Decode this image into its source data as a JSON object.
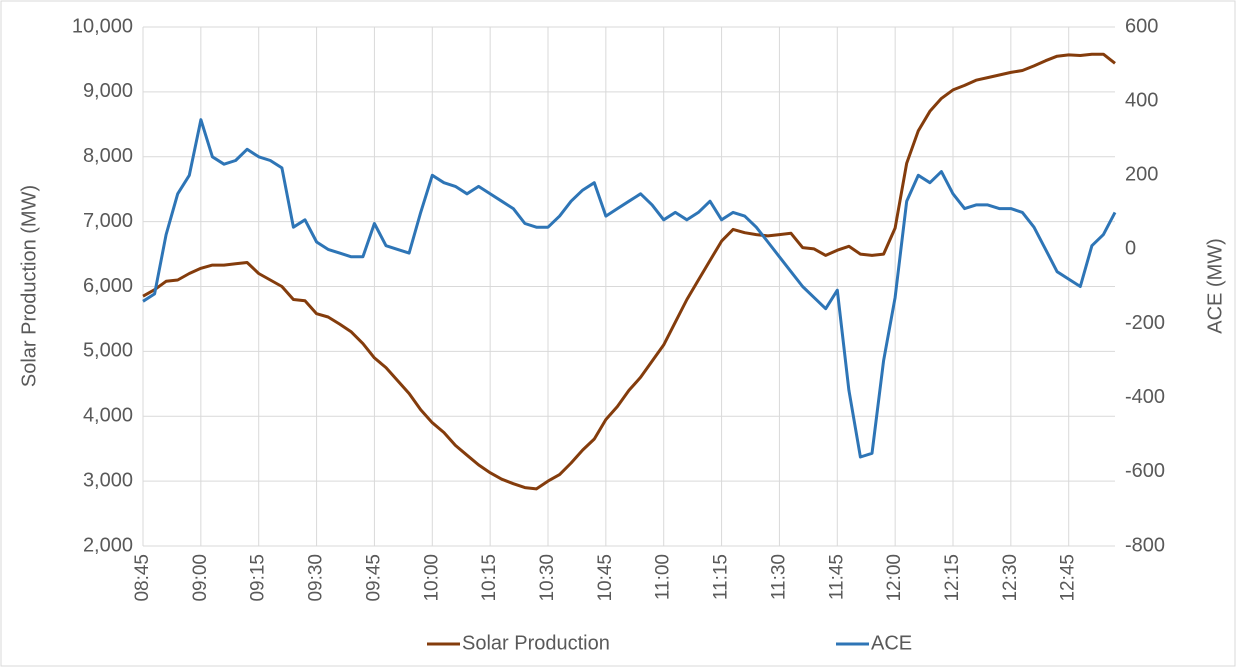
{
  "chart_data": {
    "type": "line",
    "categories": [
      "08:45",
      null,
      null,
      null,
      null,
      "09:00",
      null,
      null,
      null,
      null,
      "09:15",
      null,
      null,
      null,
      null,
      "09:30",
      null,
      null,
      null,
      null,
      "09:45",
      null,
      null,
      null,
      null,
      "10:00",
      null,
      null,
      null,
      null,
      "10:15",
      null,
      null,
      null,
      null,
      "10:30",
      null,
      null,
      null,
      null,
      "10:45",
      null,
      null,
      null,
      null,
      "11:00",
      null,
      null,
      null,
      null,
      "11:15",
      null,
      null,
      null,
      null,
      "11:30",
      null,
      null,
      null,
      null,
      "11:45",
      null,
      null,
      null,
      null,
      "12:00",
      null,
      null,
      null,
      null,
      "12:15",
      null,
      null,
      null,
      null,
      "12:30",
      null,
      null,
      null,
      null,
      "12:45",
      null,
      null,
      null,
      null
    ],
    "series": [
      {
        "name": "Solar Production",
        "color": "#843c0c",
        "values": [
          5850,
          5950,
          6080,
          6100,
          6200,
          6280,
          6330,
          6330,
          6350,
          6370,
          6200,
          6100,
          6000,
          5800,
          5780,
          5580,
          5530,
          5420,
          5300,
          5120,
          4900,
          4750,
          4550,
          4350,
          4100,
          3900,
          3750,
          3550,
          3400,
          3250,
          3130,
          3030,
          2960,
          2900,
          2880,
          3000,
          3100,
          3280,
          3480,
          3650,
          3950,
          4150,
          4400,
          4600,
          4850,
          5100,
          5450,
          5800,
          6100,
          6400,
          6700,
          6880,
          6830,
          6800,
          6780,
          6800,
          6820,
          6600,
          6580,
          6480,
          6560,
          6620,
          6500,
          6480,
          6500,
          6900,
          7900,
          8400,
          8700,
          8900,
          9030,
          9100,
          9180,
          9220,
          9260,
          9300,
          9330,
          9400,
          9480,
          9550,
          9570,
          9560,
          9580,
          9580,
          9440
        ]
      },
      {
        "name": "ACE",
        "color": "#2e75b6",
        "axis": "y2",
        "values": [
          -140,
          -120,
          40,
          150,
          200,
          350,
          250,
          230,
          240,
          270,
          250,
          240,
          220,
          60,
          80,
          20,
          0,
          -10,
          -20,
          -20,
          70,
          10,
          0,
          -10,
          100,
          200,
          180,
          170,
          150,
          170,
          150,
          130,
          110,
          70,
          60,
          60,
          90,
          130,
          160,
          180,
          90,
          110,
          130,
          150,
          120,
          80,
          100,
          80,
          100,
          130,
          80,
          100,
          90,
          60,
          20,
          -20,
          -60,
          -100,
          -130,
          -160,
          -110,
          -380,
          -560,
          -550,
          -300,
          -130,
          130,
          200,
          180,
          210,
          150,
          110,
          120,
          120,
          110,
          110,
          100,
          60,
          0,
          -60,
          -80,
          -100,
          10,
          40,
          100
        ]
      }
    ],
    "y_label": "Solar Production (MW)",
    "y2_label": "ACE (MW)",
    "ylim": [
      2000,
      10000
    ],
    "yticks": [
      {
        "value": 2000,
        "label": "2,000"
      },
      {
        "value": 3000,
        "label": "3,000"
      },
      {
        "value": 4000,
        "label": "4,000"
      },
      {
        "value": 5000,
        "label": "5,000"
      },
      {
        "value": 6000,
        "label": "6,000"
      },
      {
        "value": 7000,
        "label": "7,000"
      },
      {
        "value": 8000,
        "label": "8,000"
      },
      {
        "value": 9000,
        "label": "9,000"
      },
      {
        "value": 10000,
        "label": "10,000"
      }
    ],
    "y2lim": [
      -800,
      600
    ],
    "y2ticks": [
      -800,
      -600,
      -400,
      -200,
      0,
      200,
      400,
      600
    ],
    "grid": true,
    "legend": "bottom"
  }
}
